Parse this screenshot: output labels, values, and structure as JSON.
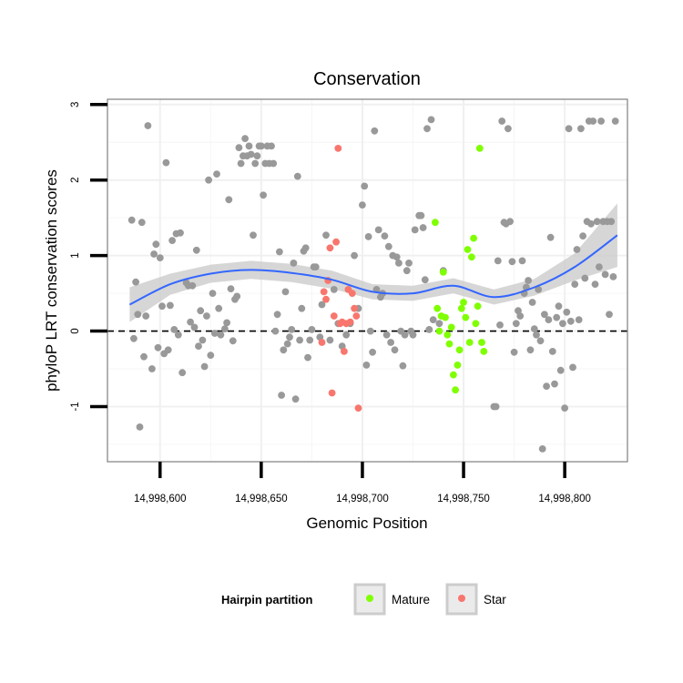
{
  "chart_data": {
    "type": "scatter",
    "title": "Conservation",
    "xlabel": "Genomic Position",
    "ylabel": "phyloP LRT conservation scores",
    "xlim": [
      14998574,
      14998831
    ],
    "ylim": [
      -1.73,
      3.07
    ],
    "x_ticks": [
      14998600,
      14998650,
      14998700,
      14998750,
      14998800
    ],
    "x_tick_labels": [
      "14,998,600",
      "14,998,650",
      "14,998,700",
      "14,998,750",
      "14,998,800"
    ],
    "y_ticks": [
      -1,
      0,
      1,
      2,
      3
    ],
    "y_tick_labels": [
      "-1",
      "0",
      "1",
      "2",
      "3"
    ],
    "reference_line": {
      "y": 0,
      "style": "dashed"
    },
    "legend": {
      "title": "Hairpin partition",
      "position": "bottom",
      "entries": [
        {
          "label": "Mature",
          "color": "#7fff00"
        },
        {
          "label": "Star",
          "color": "#f8766d"
        }
      ]
    },
    "colors": {
      "other": "#999999",
      "mature": "#7fff00",
      "star": "#f8766d",
      "smooth": "#3366ff",
      "ribbon": "#cccccc"
    },
    "series": [
      {
        "name": "Other",
        "points": [
          [
            14998586,
            1.47
          ],
          [
            14998587,
            -0.1
          ],
          [
            14998588,
            0.65
          ],
          [
            14998589,
            0.22
          ],
          [
            14998590,
            -1.27
          ],
          [
            14998591,
            1.44
          ],
          [
            14998592,
            -0.34
          ],
          [
            14998593,
            0.2
          ],
          [
            14998594,
            2.72
          ],
          [
            14998596,
            -0.5
          ],
          [
            14998597,
            1.02
          ],
          [
            14998598,
            1.15
          ],
          [
            14998599,
            -0.22
          ],
          [
            14998600,
            0.97
          ],
          [
            14998601,
            0.33
          ],
          [
            14998602,
            -0.3
          ],
          [
            14998603,
            2.23
          ],
          [
            14998604,
            -0.25
          ],
          [
            14998605,
            0.34
          ],
          [
            14998606,
            1.2
          ],
          [
            14998607,
            0.02
          ],
          [
            14998608,
            1.29
          ],
          [
            14998609,
            -0.05
          ],
          [
            14998610,
            1.3
          ],
          [
            14998611,
            -0.55
          ],
          [
            14998613,
            0.64
          ],
          [
            14998614,
            0.6
          ],
          [
            14998615,
            0.12
          ],
          [
            14998616,
            0.6
          ],
          [
            14998617,
            0.05
          ],
          [
            14998618,
            1.07
          ],
          [
            14998619,
            -0.2
          ],
          [
            14998620,
            0.27
          ],
          [
            14998621,
            -0.12
          ],
          [
            14998622,
            -0.47
          ],
          [
            14998623,
            0.2
          ],
          [
            14998624,
            2.0
          ],
          [
            14998625,
            -0.32
          ],
          [
            14998626,
            0.5
          ],
          [
            14998627,
            -0.03
          ],
          [
            14998628,
            2.08
          ],
          [
            14998629,
            0.3
          ],
          [
            14998630,
            -0.05
          ],
          [
            14998632,
            0.03
          ],
          [
            14998633,
            0.11
          ],
          [
            14998634,
            1.74
          ],
          [
            14998635,
            0.56
          ],
          [
            14998636,
            -0.13
          ],
          [
            14998637,
            0.42
          ],
          [
            14998638,
            0.46
          ],
          [
            14998639,
            2.43
          ],
          [
            14998640,
            2.22
          ],
          [
            14998641,
            2.32
          ],
          [
            14998642,
            2.55
          ],
          [
            14998643,
            2.32
          ],
          [
            14998644,
            2.45
          ],
          [
            14998645,
            2.34
          ],
          [
            14998646,
            1.27
          ],
          [
            14998647,
            2.22
          ],
          [
            14998648,
            2.32
          ],
          [
            14998649,
            2.45
          ],
          [
            14998650,
            2.45
          ],
          [
            14998651,
            1.8
          ],
          [
            14998652,
            2.22
          ],
          [
            14998653,
            2.45
          ],
          [
            14998654,
            2.22
          ],
          [
            14998655,
            2.45
          ],
          [
            14998656,
            2.22
          ],
          [
            14998657,
            0.0
          ],
          [
            14998658,
            0.22
          ],
          [
            14998659,
            1.05
          ],
          [
            14998660,
            -0.85
          ],
          [
            14998661,
            -0.25
          ],
          [
            14998662,
            0.52
          ],
          [
            14998663,
            -0.17
          ],
          [
            14998664,
            -0.08
          ],
          [
            14998665,
            0.02
          ],
          [
            14998666,
            0.9
          ],
          [
            14998667,
            -0.9
          ],
          [
            14998668,
            2.05
          ],
          [
            14998669,
            -0.12
          ],
          [
            14998670,
            0.3
          ],
          [
            14998671,
            1.06
          ],
          [
            14998672,
            1.1
          ],
          [
            14998673,
            -0.35
          ],
          [
            14998674,
            -0.12
          ],
          [
            14998675,
            0.02
          ],
          [
            14998676,
            0.85
          ],
          [
            14998677,
            0.85
          ],
          [
            14998679,
            -0.08
          ],
          [
            14998680,
            0.35
          ],
          [
            14998682,
            1.27
          ],
          [
            14998684,
            -0.12
          ],
          [
            14998686,
            0.55
          ],
          [
            14998688,
            0.1
          ],
          [
            14998690,
            -0.2
          ],
          [
            14998692,
            -0.05
          ],
          [
            14998694,
            0.1
          ],
          [
            14998696,
            1.0
          ],
          [
            14998698,
            0.3
          ],
          [
            14998700,
            1.67
          ],
          [
            14998701,
            1.92
          ],
          [
            14998702,
            -0.45
          ],
          [
            14998703,
            1.25
          ],
          [
            14998704,
            0.0
          ],
          [
            14998705,
            -0.28
          ],
          [
            14998706,
            2.65
          ],
          [
            14998707,
            0.55
          ],
          [
            14998708,
            1.34
          ],
          [
            14998709,
            0.45
          ],
          [
            14998710,
            0.5
          ],
          [
            14998711,
            1.26
          ],
          [
            14998712,
            -0.05
          ],
          [
            14998713,
            1.12
          ],
          [
            14998714,
            -0.15
          ],
          [
            14998715,
            1.0
          ],
          [
            14998716,
            -0.25
          ],
          [
            14998717,
            0.98
          ],
          [
            14998718,
            0.9
          ],
          [
            14998719,
            0.0
          ],
          [
            14998720,
            -0.46
          ],
          [
            14998721,
            -0.05
          ],
          [
            14998722,
            0.8
          ],
          [
            14998723,
            0.9
          ],
          [
            14998724,
            0.0
          ],
          [
            14998725,
            -0.05
          ],
          [
            14998726,
            1.34
          ],
          [
            14998728,
            1.53
          ],
          [
            14998729,
            1.53
          ],
          [
            14998730,
            1.37
          ],
          [
            14998731,
            0.68
          ],
          [
            14998732,
            2.68
          ],
          [
            14998733,
            0.02
          ],
          [
            14998734,
            2.8
          ],
          [
            14998735,
            0.15
          ],
          [
            14998738,
            0.1
          ],
          [
            14998740,
            0.8
          ],
          [
            14998765,
            -1.0
          ],
          [
            14998766,
            -1.0
          ],
          [
            14998767,
            0.93
          ],
          [
            14998768,
            0.08
          ],
          [
            14998769,
            2.78
          ],
          [
            14998770,
            1.44
          ],
          [
            14998771,
            1.42
          ],
          [
            14998772,
            2.68
          ],
          [
            14998773,
            1.45
          ],
          [
            14998774,
            0.92
          ],
          [
            14998775,
            -0.28
          ],
          [
            14998776,
            0.1
          ],
          [
            14998777,
            0.27
          ],
          [
            14998778,
            0.2
          ],
          [
            14998779,
            0.93
          ],
          [
            14998780,
            0.5
          ],
          [
            14998781,
            0.58
          ],
          [
            14998782,
            0.67
          ],
          [
            14998783,
            -0.25
          ],
          [
            14998784,
            0.38
          ],
          [
            14998785,
            0.03
          ],
          [
            14998786,
            -0.05
          ],
          [
            14998787,
            0.55
          ],
          [
            14998788,
            -0.13
          ],
          [
            14998789,
            -1.56
          ],
          [
            14998790,
            0.22
          ],
          [
            14998791,
            -0.73
          ],
          [
            14998792,
            0.15
          ],
          [
            14998793,
            1.24
          ],
          [
            14998794,
            -0.27
          ],
          [
            14998795,
            -0.7
          ],
          [
            14998796,
            0.18
          ],
          [
            14998797,
            0.33
          ],
          [
            14998798,
            -0.52
          ],
          [
            14998799,
            0.1
          ],
          [
            14998800,
            -1.02
          ],
          [
            14998801,
            0.25
          ],
          [
            14998802,
            2.68
          ],
          [
            14998803,
            0.13
          ],
          [
            14998804,
            -0.48
          ],
          [
            14998805,
            0.62
          ],
          [
            14998806,
            1.08
          ],
          [
            14998807,
            0.15
          ],
          [
            14998808,
            2.68
          ],
          [
            14998809,
            1.26
          ],
          [
            14998810,
            0.7
          ],
          [
            14998811,
            1.45
          ],
          [
            14998812,
            2.78
          ],
          [
            14998813,
            1.42
          ],
          [
            14998814,
            2.78
          ],
          [
            14998815,
            0.62
          ],
          [
            14998816,
            1.45
          ],
          [
            14998817,
            0.85
          ],
          [
            14998818,
            2.78
          ],
          [
            14998819,
            1.45
          ],
          [
            14998820,
            0.75
          ],
          [
            14998821,
            1.45
          ],
          [
            14998822,
            0.22
          ],
          [
            14998823,
            1.45
          ],
          [
            14998824,
            0.72
          ],
          [
            14998825,
            2.78
          ]
        ]
      },
      {
        "name": "Mature",
        "points": [
          [
            14998736,
            1.44
          ],
          [
            14998737,
            0.3
          ],
          [
            14998738,
            0.0
          ],
          [
            14998739,
            0.2
          ],
          [
            14998740,
            0.78
          ],
          [
            14998741,
            0.18
          ],
          [
            14998742,
            -0.05
          ],
          [
            14998743,
            -0.17
          ],
          [
            14998744,
            0.05
          ],
          [
            14998745,
            -0.58
          ],
          [
            14998746,
            -0.78
          ],
          [
            14998747,
            -0.45
          ],
          [
            14998748,
            -0.25
          ],
          [
            14998749,
            0.3
          ],
          [
            14998750,
            0.38
          ],
          [
            14998751,
            0.18
          ],
          [
            14998752,
            1.08
          ],
          [
            14998753,
            -0.15
          ],
          [
            14998754,
            0.98
          ],
          [
            14998755,
            1.23
          ],
          [
            14998756,
            0.1
          ],
          [
            14998757,
            0.33
          ],
          [
            14998758,
            2.42
          ],
          [
            14998759,
            -0.15
          ],
          [
            14998760,
            -0.27
          ]
        ]
      },
      {
        "name": "Star",
        "points": [
          [
            14998680,
            -0.15
          ],
          [
            14998681,
            0.52
          ],
          [
            14998682,
            0.42
          ],
          [
            14998683,
            0.67
          ],
          [
            14998684,
            1.1
          ],
          [
            14998685,
            -0.82
          ],
          [
            14998686,
            0.2
          ],
          [
            14998687,
            1.18
          ],
          [
            14998688,
            2.42
          ],
          [
            14998689,
            0.1
          ],
          [
            14998690,
            0.12
          ],
          [
            14998691,
            -0.27
          ],
          [
            14998692,
            0.1
          ],
          [
            14998693,
            0.55
          ],
          [
            14998694,
            0.12
          ],
          [
            14998695,
            0.5
          ],
          [
            14998696,
            0.3
          ],
          [
            14998697,
            0.2
          ],
          [
            14998698,
            -1.02
          ]
        ]
      }
    ],
    "smooth": {
      "method": "loess",
      "x": [
        14998585,
        14998605,
        14998625,
        14998645,
        14998665,
        14998685,
        14998705,
        14998725,
        14998745,
        14998765,
        14998785,
        14998805,
        14998826
      ],
      "fit": [
        0.35,
        0.62,
        0.76,
        0.81,
        0.77,
        0.68,
        0.52,
        0.5,
        0.6,
        0.45,
        0.58,
        0.85,
        1.27
      ],
      "lower": [
        0.12,
        0.48,
        0.64,
        0.69,
        0.65,
        0.56,
        0.42,
        0.4,
        0.5,
        0.35,
        0.47,
        0.67,
        0.85
      ],
      "upper": [
        0.58,
        0.76,
        0.88,
        0.93,
        0.89,
        0.8,
        0.62,
        0.6,
        0.7,
        0.55,
        0.69,
        1.03,
        1.69
      ]
    }
  }
}
